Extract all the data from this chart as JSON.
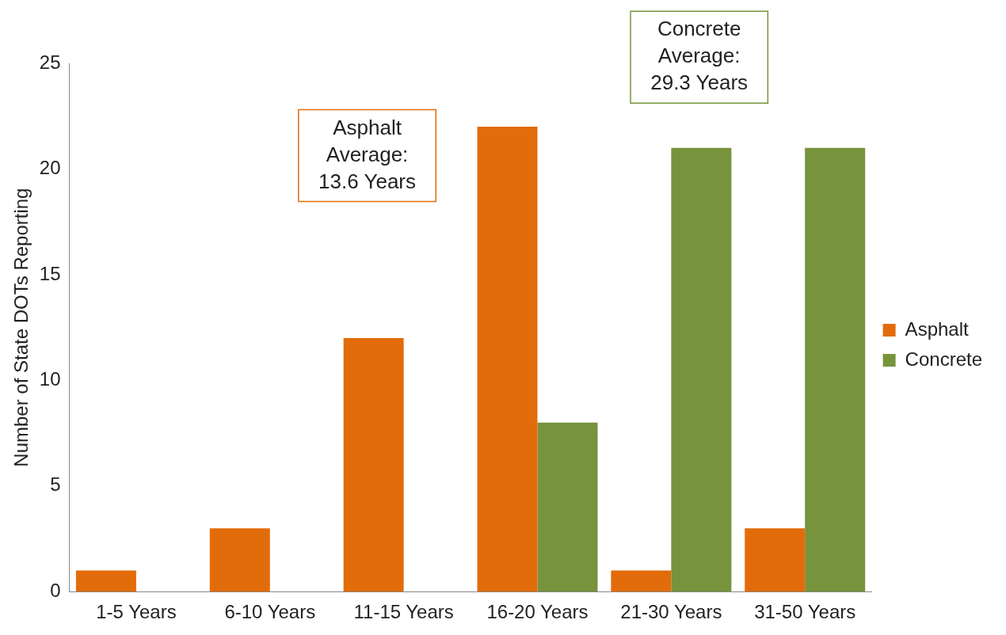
{
  "chart_data": {
    "type": "bar",
    "ylabel": "Number of State DOTs Reporting",
    "categories": [
      "1-5 Years",
      "6-10 Years",
      "11-15 Years",
      "16-20 Years",
      "21-30 Years",
      "31-50 Years"
    ],
    "series": [
      {
        "name": "Asphalt",
        "color": "#e36c0a",
        "values": [
          1,
          3,
          12,
          22,
          1,
          3
        ]
      },
      {
        "name": "Concrete",
        "color": "#77933c",
        "values": [
          0,
          0,
          0,
          8,
          21,
          21
        ]
      }
    ],
    "ylim": [
      0,
      25
    ],
    "yticks": [
      0,
      5,
      10,
      15,
      20,
      25
    ],
    "grid": false,
    "legend": "right",
    "annotations": [
      "Asphalt Average: 13.6 Years",
      "Concrete Average: 29.3 Years"
    ]
  }
}
